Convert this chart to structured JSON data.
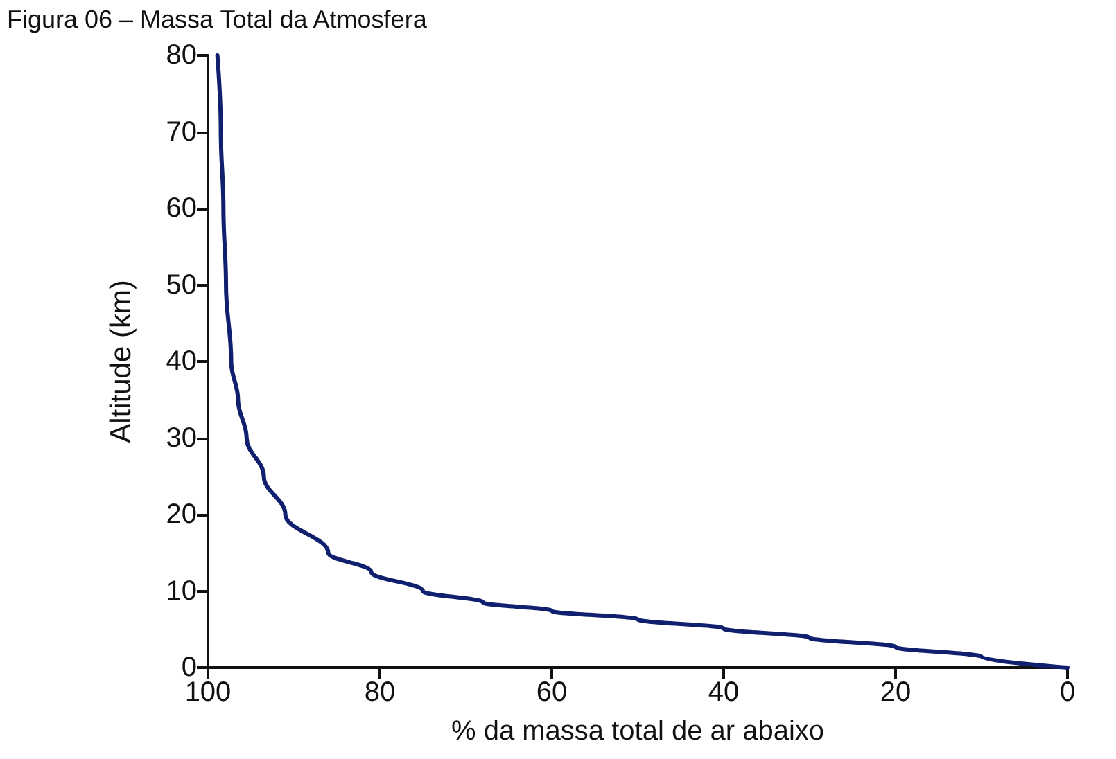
{
  "chart_data": {
    "type": "line",
    "title": "Figura 06 – Massa Total da Atmosfera",
    "xlabel": "% da massa total de ar abaixo",
    "ylabel": "Altitude (km)",
    "xlim": [
      100,
      0
    ],
    "xticks": [
      100,
      80,
      60,
      40,
      20,
      0
    ],
    "ylim": [
      0,
      80
    ],
    "yticks": [
      0,
      10,
      20,
      30,
      40,
      50,
      60,
      70,
      80
    ],
    "grid": false,
    "marker": "none",
    "line_style": "solid",
    "series": [
      {
        "color": "#10206e",
        "x": [
          98.9,
          98.5,
          98.2,
          97.9,
          97.3,
          96.5,
          95.5,
          93.5,
          91,
          86,
          81,
          75,
          68,
          60,
          50,
          40,
          30,
          20,
          10,
          0
        ],
        "values": [
          80,
          70,
          60,
          50,
          40,
          35,
          30,
          25,
          20,
          15,
          12.5,
          10,
          8.5,
          7.4,
          6.3,
          5.1,
          3.9,
          2.7,
          1.4,
          0
        ]
      }
    ]
  }
}
